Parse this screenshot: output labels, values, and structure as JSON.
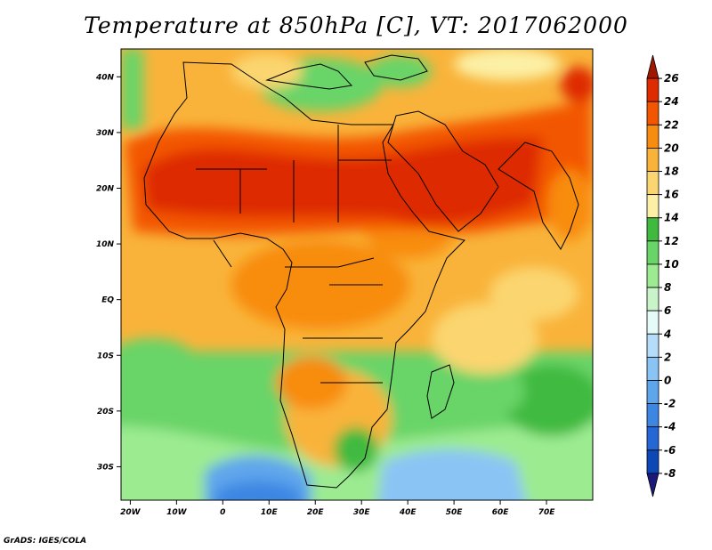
{
  "title": "Temperature at 850hPa [C], VT: 2017062000",
  "credit": "GrADS: IGES/COLA",
  "map": {
    "lon_range": [
      -22,
      80
    ],
    "lat_range": [
      -36,
      45
    ],
    "lon_ticks": [
      {
        "value": -20,
        "label": "20W"
      },
      {
        "value": -10,
        "label": "10W"
      },
      {
        "value": 0,
        "label": "0"
      },
      {
        "value": 10,
        "label": "10E"
      },
      {
        "value": 20,
        "label": "20E"
      },
      {
        "value": 30,
        "label": "30E"
      },
      {
        "value": 40,
        "label": "40E"
      },
      {
        "value": 50,
        "label": "50E"
      },
      {
        "value": 60,
        "label": "60E"
      },
      {
        "value": 70,
        "label": "70E"
      }
    ],
    "lat_ticks": [
      {
        "value": 40,
        "label": "40N"
      },
      {
        "value": 30,
        "label": "30N"
      },
      {
        "value": 20,
        "label": "20N"
      },
      {
        "value": 10,
        "label": "10N"
      },
      {
        "value": 0,
        "label": "EQ"
      },
      {
        "value": -10,
        "label": "10S"
      },
      {
        "value": -20,
        "label": "20S"
      },
      {
        "value": -30,
        "label": "30S"
      }
    ]
  },
  "colorbar": {
    "labels": [
      "26",
      "24",
      "22",
      "20",
      "18",
      "16",
      "14",
      "12",
      "10",
      "8",
      "6",
      "4",
      "2",
      "0",
      "-2",
      "-4",
      "-6",
      "-8"
    ],
    "colors": [
      "#a01800",
      "#de2c00",
      "#f35600",
      "#f88c10",
      "#f9b33a",
      "#fbd56f",
      "#fcf0a6",
      "#3fba3f",
      "#69d467",
      "#9ceb91",
      "#c9f4ca",
      "#e4fbf7",
      "#b5dcf9",
      "#8ac4f5",
      "#5ea6ec",
      "#3d87e3",
      "#2567d5",
      "#0e47b6",
      "#1b1a7a"
    ]
  }
}
